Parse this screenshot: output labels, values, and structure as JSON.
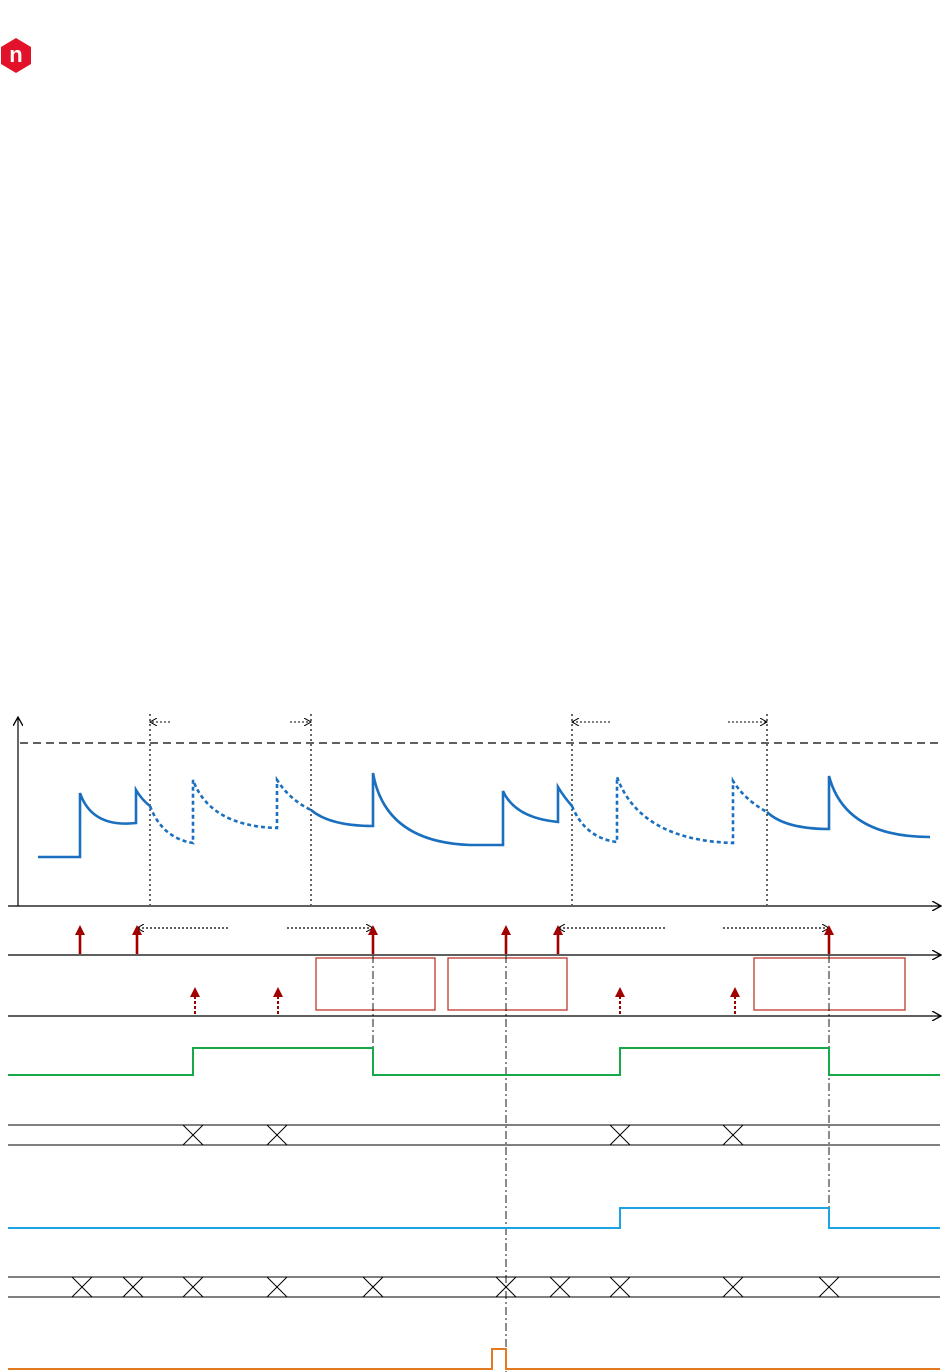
{
  "logo": {
    "text": "n"
  }
}
